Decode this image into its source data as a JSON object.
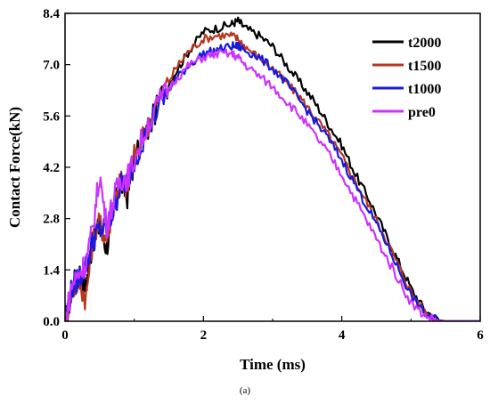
{
  "chart_data": {
    "type": "line",
    "caption": "(a)",
    "xlabel": "Time (ms)",
    "ylabel": "Contact Force(kN)",
    "xlim": [
      0,
      6
    ],
    "ylim": [
      0,
      8.4
    ],
    "x_ticks": [
      "0",
      "2",
      "4",
      "6"
    ],
    "y_ticks": [
      "0.0",
      "1.4",
      "2.8",
      "4.2",
      "5.6",
      "7.0",
      "8.4"
    ],
    "grid": false,
    "legend_position": "top-right",
    "series": [
      {
        "name": "t2000",
        "color": "#000000",
        "x": [
          0,
          0.1,
          0.2,
          0.3,
          0.4,
          0.5,
          0.6,
          0.7,
          0.8,
          0.9,
          1.0,
          1.2,
          1.4,
          1.6,
          1.8,
          2.0,
          2.2,
          2.4,
          2.5,
          2.6,
          2.8,
          3.0,
          3.2,
          3.4,
          3.6,
          3.8,
          4.0,
          4.2,
          4.4,
          4.6,
          4.8,
          5.0,
          5.2,
          5.4,
          5.5,
          5.6,
          6.0
        ],
        "y": [
          0.0,
          0.9,
          1.4,
          0.9,
          2.2,
          2.6,
          2.0,
          3.0,
          3.8,
          3.4,
          4.4,
          5.2,
          6.2,
          6.8,
          7.4,
          7.9,
          8.0,
          8.1,
          8.2,
          8.0,
          7.8,
          7.5,
          7.0,
          6.5,
          6.0,
          5.4,
          4.8,
          4.0,
          3.3,
          2.5,
          1.7,
          0.9,
          0.3,
          0.03,
          0.0,
          0.0,
          0.0
        ]
      },
      {
        "name": "t1500",
        "color": "#b5371e",
        "x": [
          0,
          0.1,
          0.2,
          0.3,
          0.4,
          0.5,
          0.6,
          0.7,
          0.8,
          0.9,
          1.0,
          1.2,
          1.4,
          1.6,
          1.8,
          2.0,
          2.2,
          2.4,
          2.5,
          2.6,
          2.8,
          3.0,
          3.2,
          3.4,
          3.6,
          3.8,
          4.0,
          4.2,
          4.4,
          4.6,
          4.8,
          5.0,
          5.2,
          5.4,
          5.5,
          5.6,
          6.0
        ],
        "y": [
          0.0,
          0.8,
          1.1,
          0.6,
          2.2,
          2.7,
          2.2,
          3.2,
          3.9,
          3.6,
          4.5,
          5.4,
          6.2,
          6.9,
          7.4,
          7.7,
          7.8,
          7.8,
          7.7,
          7.5,
          7.2,
          6.9,
          6.5,
          6.1,
          5.6,
          5.1,
          4.5,
          3.8,
          3.1,
          2.4,
          1.6,
          0.8,
          0.25,
          0.02,
          0.0,
          0.0,
          0.0
        ]
      },
      {
        "name": "t1000",
        "color": "#1a1adc",
        "x": [
          0,
          0.1,
          0.2,
          0.3,
          0.4,
          0.5,
          0.6,
          0.7,
          0.8,
          0.9,
          1.0,
          1.2,
          1.4,
          1.6,
          1.8,
          2.0,
          2.2,
          2.4,
          2.5,
          2.6,
          2.8,
          3.0,
          3.2,
          3.4,
          3.6,
          3.8,
          4.0,
          4.2,
          4.4,
          4.6,
          4.8,
          5.0,
          5.2,
          5.4,
          5.5,
          5.6,
          6.0
        ],
        "y": [
          0.0,
          0.9,
          1.2,
          1.5,
          2.2,
          2.5,
          2.5,
          3.0,
          3.7,
          3.8,
          4.4,
          5.3,
          6.0,
          6.6,
          7.0,
          7.3,
          7.4,
          7.5,
          7.5,
          7.4,
          7.2,
          6.9,
          6.5,
          6.0,
          5.5,
          5.0,
          4.4,
          3.7,
          3.0,
          2.3,
          1.5,
          0.7,
          0.2,
          0.02,
          0.0,
          0.0,
          0.0
        ]
      },
      {
        "name": "pre0",
        "color": "#cc33ff",
        "x": [
          0,
          0.1,
          0.2,
          0.3,
          0.4,
          0.5,
          0.6,
          0.7,
          0.8,
          0.9,
          1.0,
          1.2,
          1.4,
          1.6,
          1.8,
          2.0,
          2.2,
          2.4,
          2.5,
          2.6,
          2.8,
          3.0,
          3.2,
          3.4,
          3.6,
          3.8,
          4.0,
          4.2,
          4.4,
          4.6,
          4.8,
          5.0,
          5.2,
          5.4,
          5.5,
          5.6,
          6.0
        ],
        "y": [
          0.0,
          1.0,
          1.3,
          1.6,
          2.5,
          4.0,
          2.6,
          3.3,
          3.9,
          3.9,
          4.4,
          5.4,
          6.1,
          6.6,
          7.0,
          7.2,
          7.3,
          7.3,
          7.2,
          7.0,
          6.7,
          6.4,
          6.0,
          5.6,
          5.1,
          4.6,
          4.0,
          3.3,
          2.6,
          1.9,
          1.2,
          0.5,
          0.15,
          0.01,
          0.0,
          0.0,
          0.0
        ]
      }
    ]
  }
}
